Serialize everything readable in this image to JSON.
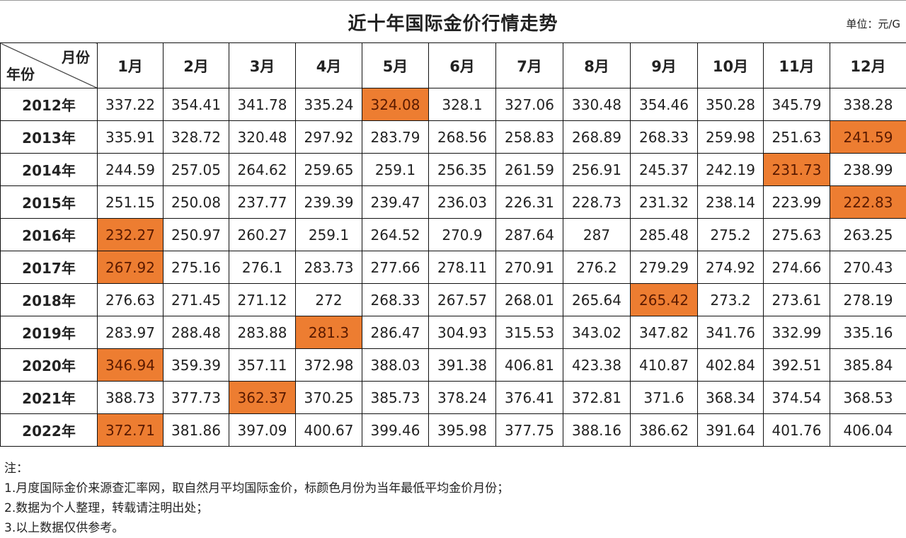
{
  "title": "近十年国际金价行情走势",
  "unit": "单位：元/G",
  "corner": {
    "month_label": "月份",
    "year_label": "年份"
  },
  "months": [
    "1月",
    "2月",
    "3月",
    "4月",
    "5月",
    "6月",
    "7月",
    "8月",
    "9月",
    "10月",
    "11月",
    "12月"
  ],
  "highlight_color": "#ED7D31",
  "rows": [
    {
      "year": "2012年",
      "values": [
        "337.22",
        "354.41",
        "341.78",
        "335.24",
        "324.08",
        "328.1",
        "327.06",
        "330.48",
        "354.46",
        "350.28",
        "345.79",
        "338.28"
      ],
      "lowest_month_index": 4
    },
    {
      "year": "2013年",
      "values": [
        "335.91",
        "328.72",
        "320.48",
        "297.92",
        "283.79",
        "268.56",
        "258.83",
        "268.89",
        "268.33",
        "259.98",
        "251.63",
        "241.59"
      ],
      "lowest_month_index": 11
    },
    {
      "year": "2014年",
      "values": [
        "244.59",
        "257.05",
        "264.62",
        "259.65",
        "259.1",
        "256.35",
        "261.59",
        "256.91",
        "245.37",
        "242.19",
        "231.73",
        "238.99"
      ],
      "lowest_month_index": 10
    },
    {
      "year": "2015年",
      "values": [
        "251.15",
        "250.08",
        "237.77",
        "239.39",
        "239.47",
        "236.03",
        "226.31",
        "228.73",
        "231.32",
        "238.14",
        "223.99",
        "222.83"
      ],
      "lowest_month_index": 11
    },
    {
      "year": "2016年",
      "values": [
        "232.27",
        "250.97",
        "260.27",
        "259.1",
        "264.52",
        "270.9",
        "287.64",
        "287",
        "285.48",
        "275.2",
        "275.63",
        "263.25"
      ],
      "lowest_month_index": 0
    },
    {
      "year": "2017年",
      "values": [
        "267.92",
        "275.16",
        "276.1",
        "283.73",
        "277.66",
        "278.11",
        "270.91",
        "276.2",
        "279.29",
        "274.92",
        "274.66",
        "270.43"
      ],
      "lowest_month_index": 0
    },
    {
      "year": "2018年",
      "values": [
        "276.63",
        "271.45",
        "271.12",
        "272",
        "268.33",
        "267.57",
        "268.01",
        "265.64",
        "265.42",
        "273.2",
        "273.61",
        "278.19"
      ],
      "lowest_month_index": 8
    },
    {
      "year": "2019年",
      "values": [
        "283.97",
        "288.48",
        "283.88",
        "281.3",
        "286.47",
        "304.93",
        "315.53",
        "343.02",
        "347.82",
        "341.76",
        "332.99",
        "335.16"
      ],
      "lowest_month_index": 3
    },
    {
      "year": "2020年",
      "values": [
        "346.94",
        "359.39",
        "357.11",
        "372.98",
        "388.03",
        "391.38",
        "406.81",
        "423.38",
        "410.87",
        "402.84",
        "392.51",
        "385.84"
      ],
      "lowest_month_index": 0
    },
    {
      "year": "2021年",
      "values": [
        "388.73",
        "377.73",
        "362.37",
        "370.25",
        "385.73",
        "378.24",
        "376.41",
        "372.81",
        "371.6",
        "368.34",
        "374.54",
        "368.53"
      ],
      "lowest_month_index": 2
    },
    {
      "year": "2022年",
      "values": [
        "372.71",
        "381.86",
        "397.09",
        "400.67",
        "399.46",
        "395.98",
        "377.75",
        "388.16",
        "386.62",
        "391.64",
        "401.76",
        "406.04"
      ],
      "lowest_month_index": 0
    }
  ],
  "notes": [
    "注：",
    "1.月度国际金价来源查汇率网，取自然月平均国际金价，标颜色月份为当年最低平均金价月份；",
    "2.数据为个人整理，转载请注明出处；",
    "3.以上数据仅供参考。"
  ]
}
